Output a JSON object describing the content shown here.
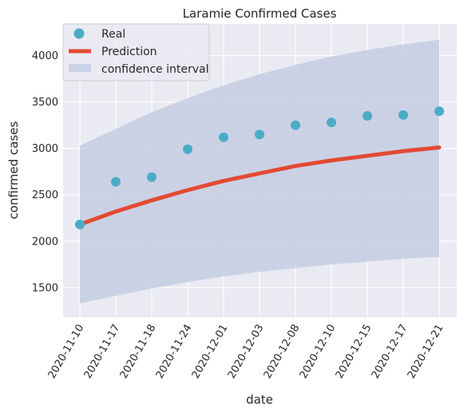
{
  "chart_data": {
    "type": "line",
    "title": "Laramie Confirmed Cases",
    "xlabel": "date",
    "ylabel": "confirmed cases",
    "x": [
      "2020-11-10",
      "2020-11-17",
      "2020-11-18",
      "2020-11-24",
      "2020-12-01",
      "2020-12-03",
      "2020-12-08",
      "2020-12-10",
      "2020-12-15",
      "2020-12-17",
      "2020-12-21"
    ],
    "ylim": [
      1180,
      4340
    ],
    "yticks": [
      1500,
      2000,
      2500,
      3000,
      3500,
      4000
    ],
    "grid": true,
    "legend_position": "top-left",
    "series": [
      {
        "name": "Real",
        "kind": "scatter",
        "color": "#4bacc6",
        "values": [
          2180,
          2640,
          2690,
          2990,
          3120,
          3150,
          3250,
          3280,
          3350,
          3360,
          3400
        ]
      },
      {
        "name": "Prediction",
        "kind": "line",
        "color": "#e24a33",
        "values": [
          2180,
          2320,
          2440,
          2550,
          2650,
          2730,
          2810,
          2870,
          2920,
          2970,
          3010
        ]
      },
      {
        "name": "confidence interval",
        "kind": "band",
        "color": "#c5cde3",
        "lower": [
          1330,
          1410,
          1490,
          1560,
          1620,
          1670,
          1710,
          1750,
          1780,
          1810,
          1830
        ],
        "upper": [
          3030,
          3210,
          3390,
          3540,
          3680,
          3800,
          3900,
          3990,
          4060,
          4120,
          4170
        ]
      }
    ]
  },
  "colors": {
    "plot_background": "#eaeaf2",
    "grid": "#ffffff"
  }
}
